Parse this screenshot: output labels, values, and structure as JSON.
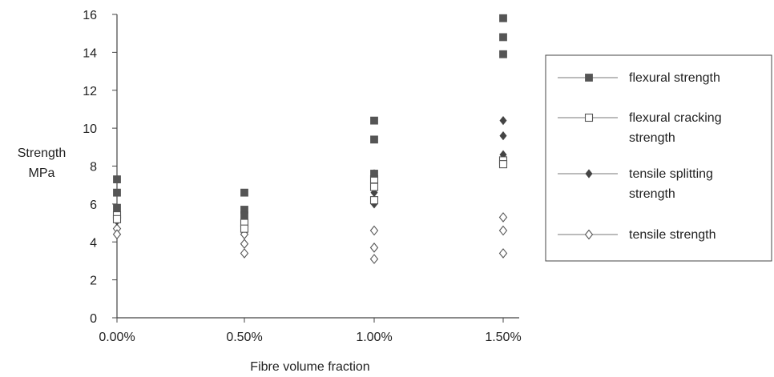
{
  "chart_data": {
    "type": "scatter",
    "title": "",
    "xlabel": "Fibre volume fraction",
    "ylabel_lines": [
      "Strength",
      "MPa"
    ],
    "x_categories": [
      "0.00%",
      "0.50%",
      "1.00%",
      "1.50%"
    ],
    "ylim": [
      0,
      16
    ],
    "y_ticks": [
      "0",
      "2",
      "4",
      "6",
      "8",
      "10",
      "12",
      "14",
      "16"
    ],
    "grid": false,
    "legend_position": "right",
    "series": [
      {
        "name_lines": [
          "flexural strength"
        ],
        "marker": "square-filled",
        "color": "#555555",
        "points": [
          {
            "x": "0.00%",
            "y": 7.3
          },
          {
            "x": "0.00%",
            "y": 6.6
          },
          {
            "x": "0.00%",
            "y": 5.8
          },
          {
            "x": "0.50%",
            "y": 6.6
          },
          {
            "x": "0.50%",
            "y": 5.7
          },
          {
            "x": "0.50%",
            "y": 5.4
          },
          {
            "x": "1.00%",
            "y": 10.4
          },
          {
            "x": "1.00%",
            "y": 9.4
          },
          {
            "x": "1.00%",
            "y": 7.6
          },
          {
            "x": "1.50%",
            "y": 15.8
          },
          {
            "x": "1.50%",
            "y": 14.8
          },
          {
            "x": "1.50%",
            "y": 13.9
          }
        ]
      },
      {
        "name_lines": [
          "flexural cracking",
          "strength"
        ],
        "marker": "square-open",
        "color": "#555555",
        "points": [
          {
            "x": "0.00%",
            "y": 5.4
          },
          {
            "x": "0.00%",
            "y": 5.2
          },
          {
            "x": "0.50%",
            "y": 5.0
          },
          {
            "x": "0.50%",
            "y": 4.7
          },
          {
            "x": "1.00%",
            "y": 7.3
          },
          {
            "x": "1.00%",
            "y": 6.9
          },
          {
            "x": "1.00%",
            "y": 6.2
          },
          {
            "x": "1.50%",
            "y": 8.3
          },
          {
            "x": "1.50%",
            "y": 8.1
          }
        ]
      },
      {
        "name_lines": [
          "tensile splitting",
          "strength"
        ],
        "marker": "diamond-filled",
        "color": "#444444",
        "points": [
          {
            "x": "0.00%",
            "y": 5.1
          },
          {
            "x": "0.50%",
            "y": 5.5
          },
          {
            "x": "0.50%",
            "y": 4.9
          },
          {
            "x": "1.00%",
            "y": 7.6
          },
          {
            "x": "1.00%",
            "y": 6.6
          },
          {
            "x": "1.00%",
            "y": 6.0
          },
          {
            "x": "1.50%",
            "y": 10.4
          },
          {
            "x": "1.50%",
            "y": 9.6
          },
          {
            "x": "1.50%",
            "y": 8.6
          }
        ]
      },
      {
        "name_lines": [
          "tensile strength"
        ],
        "marker": "diamond-open",
        "color": "#555555",
        "points": [
          {
            "x": "0.00%",
            "y": 5.3
          },
          {
            "x": "0.00%",
            "y": 4.7
          },
          {
            "x": "0.00%",
            "y": 4.4
          },
          {
            "x": "0.50%",
            "y": 4.4
          },
          {
            "x": "0.50%",
            "y": 3.9
          },
          {
            "x": "0.50%",
            "y": 3.4
          },
          {
            "x": "1.00%",
            "y": 4.6
          },
          {
            "x": "1.00%",
            "y": 3.7
          },
          {
            "x": "1.00%",
            "y": 3.1
          },
          {
            "x": "1.50%",
            "y": 5.3
          },
          {
            "x": "1.50%",
            "y": 4.6
          },
          {
            "x": "1.50%",
            "y": 3.4
          }
        ]
      }
    ]
  }
}
